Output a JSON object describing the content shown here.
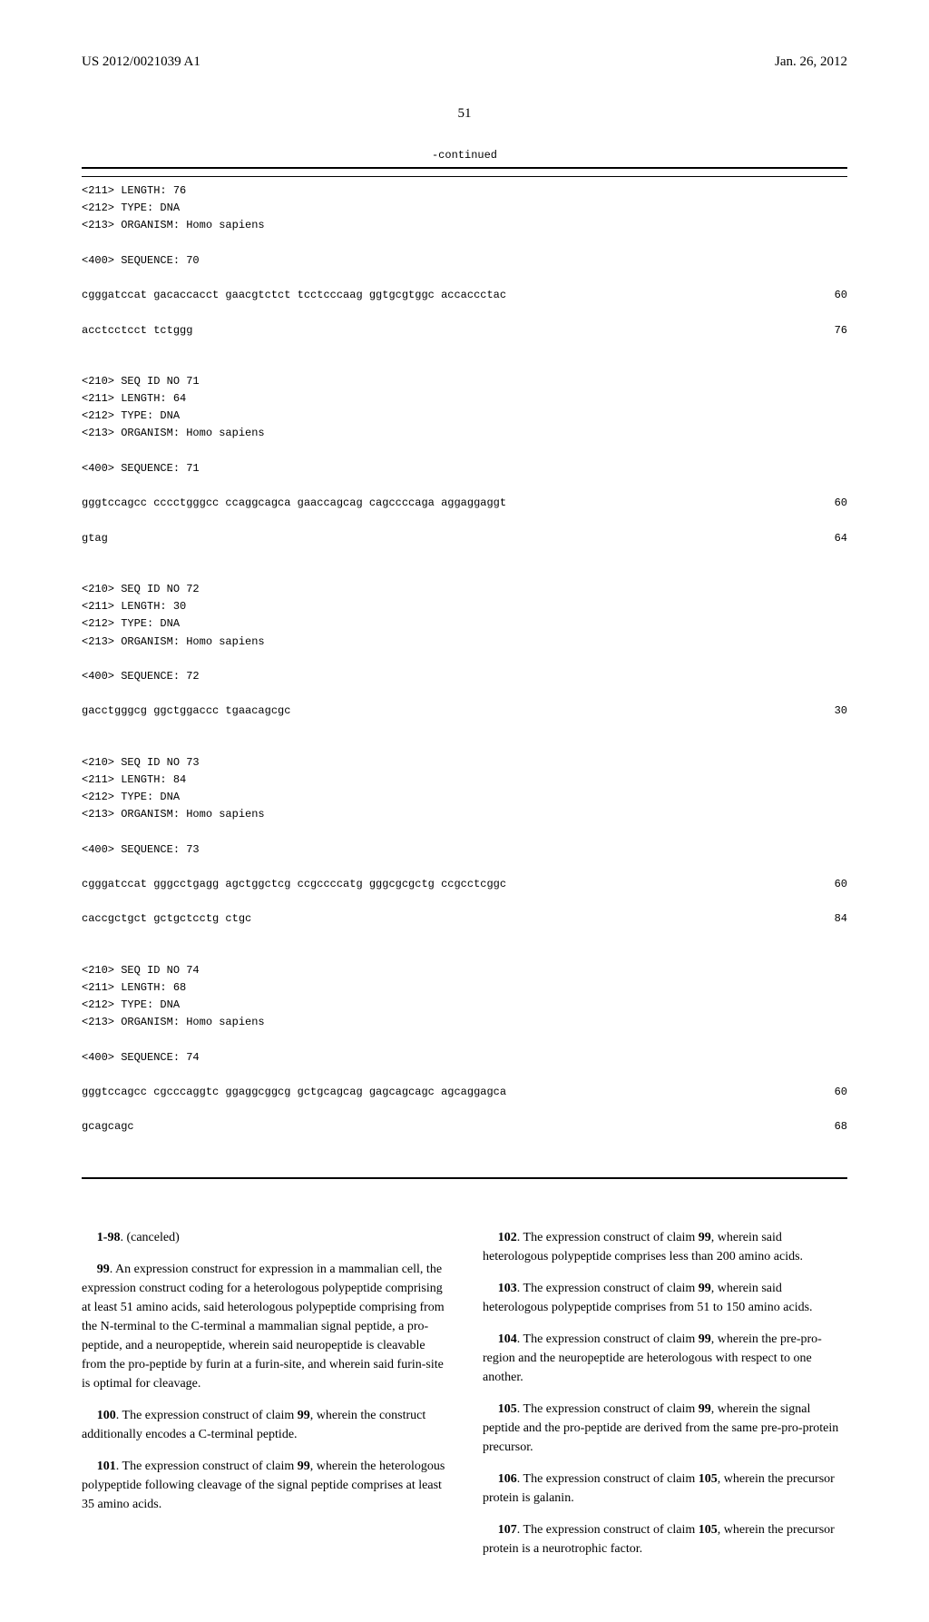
{
  "header": {
    "pub_number": "US 2012/0021039 A1",
    "pub_date": "Jan. 26, 2012"
  },
  "page_number": "51",
  "continued_label": "-continued",
  "sequences": [
    {
      "meta": [
        "<211> LENGTH: 76",
        "<212> TYPE: DNA",
        "<213> ORGANISM: Homo sapiens",
        "",
        "<400> SEQUENCE: 70"
      ],
      "lines": [
        {
          "seq": "cgggatccat gacaccacct gaacgtctct tcctcccaag ggtgcgtggc accaccctac",
          "pos": "60"
        },
        {
          "seq": "acctcctcct tctggg",
          "pos": "76"
        }
      ]
    },
    {
      "meta": [
        "<210> SEQ ID NO 71",
        "<211> LENGTH: 64",
        "<212> TYPE: DNA",
        "<213> ORGANISM: Homo sapiens",
        "",
        "<400> SEQUENCE: 71"
      ],
      "lines": [
        {
          "seq": "gggtccagcc cccctgggcc ccaggcagca gaaccagcag cagccccaga aggaggaggt",
          "pos": "60"
        },
        {
          "seq": "gtag",
          "pos": "64"
        }
      ]
    },
    {
      "meta": [
        "<210> SEQ ID NO 72",
        "<211> LENGTH: 30",
        "<212> TYPE: DNA",
        "<213> ORGANISM: Homo sapiens",
        "",
        "<400> SEQUENCE: 72"
      ],
      "lines": [
        {
          "seq": "gacctgggcg ggctggaccc tgaacagcgc",
          "pos": "30"
        }
      ]
    },
    {
      "meta": [
        "<210> SEQ ID NO 73",
        "<211> LENGTH: 84",
        "<212> TYPE: DNA",
        "<213> ORGANISM: Homo sapiens",
        "",
        "<400> SEQUENCE: 73"
      ],
      "lines": [
        {
          "seq": "cgggatccat gggcctgagg agctggctcg ccgccccatg gggcgcgctg ccgcctcggc",
          "pos": "60"
        },
        {
          "seq": "caccgctgct gctgctcctg ctgc",
          "pos": "84"
        }
      ]
    },
    {
      "meta": [
        "<210> SEQ ID NO 74",
        "<211> LENGTH: 68",
        "<212> TYPE: DNA",
        "<213> ORGANISM: Homo sapiens",
        "",
        "<400> SEQUENCE: 74"
      ],
      "lines": [
        {
          "seq": "gggtccagcc cgcccaggtc ggaggcggcg gctgcagcag gagcagcagc agcaggagca",
          "pos": "60"
        },
        {
          "seq": "gcagcagc",
          "pos": "68"
        }
      ]
    }
  ],
  "claims": {
    "left": [
      {
        "num": "1-98",
        "text": ". (canceled)"
      },
      {
        "num": "99",
        "text": ". An expression construct for expression in a mammalian cell, the expression construct coding for a heterologous polypeptide comprising at least 51 amino acids, said heterologous polypeptide comprising from the N-terminal to the C-terminal a mammalian signal peptide, a pro-peptide, and a neuropeptide, wherein said neuropeptide is cleavable from the pro-peptide by furin at a furin-site, and wherein said furin-site is optimal for cleavage."
      },
      {
        "num": "100",
        "text": ". The expression construct of claim 99, wherein the construct additionally encodes a C-terminal peptide."
      },
      {
        "num": "101",
        "text": ". The expression construct of claim 99, wherein the heterologous polypeptide following cleavage of the signal peptide comprises at least 35 amino acids."
      }
    ],
    "right": [
      {
        "num": "102",
        "text": ". The expression construct of claim 99, wherein said heterologous polypeptide comprises less than 200 amino acids."
      },
      {
        "num": "103",
        "text": ". The expression construct of claim 99, wherein said heterologous polypeptide comprises from 51 to 150 amino acids."
      },
      {
        "num": "104",
        "text": ". The expression construct of claim 99, wherein the pre-pro-region and the neuropeptide are heterologous with respect to one another."
      },
      {
        "num": "105",
        "text": ". The expression construct of claim 99, wherein the signal peptide and the pro-peptide are derived from the same pre-pro-protein precursor."
      },
      {
        "num": "106",
        "text": ". The expression construct of claim 105, wherein the precursor protein is galanin."
      },
      {
        "num": "107",
        "text": ". The expression construct of claim 105, wherein the precursor protein is a neurotrophic factor."
      }
    ]
  }
}
